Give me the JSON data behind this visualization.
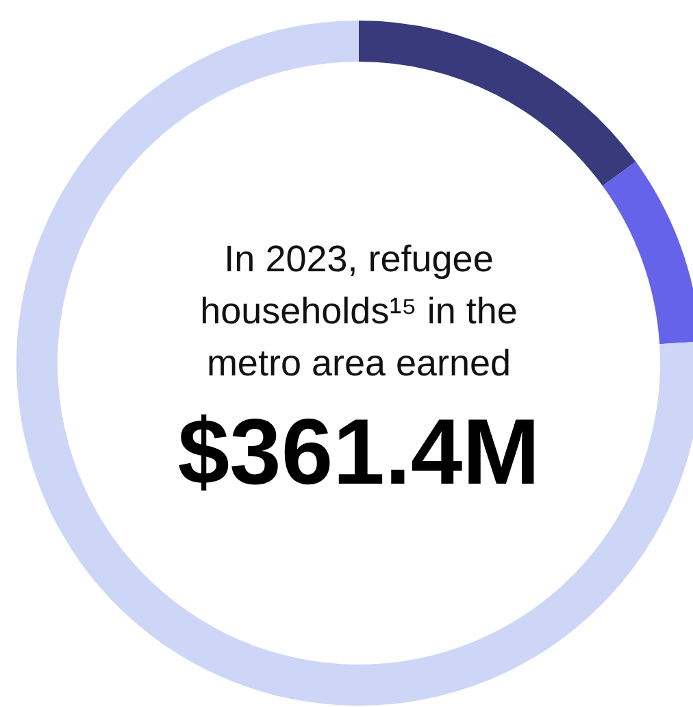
{
  "chart_data": {
    "type": "donut",
    "title": "In 2023, refugee households¹⁵ in the metro area earned",
    "annotations": [
      "$361.4M"
    ],
    "categories": [
      null,
      null,
      null
    ],
    "values": [
      15,
      9,
      76
    ],
    "colors": [
      "#383a7c",
      "#6563e9",
      "#cdd6f7"
    ]
  }
}
